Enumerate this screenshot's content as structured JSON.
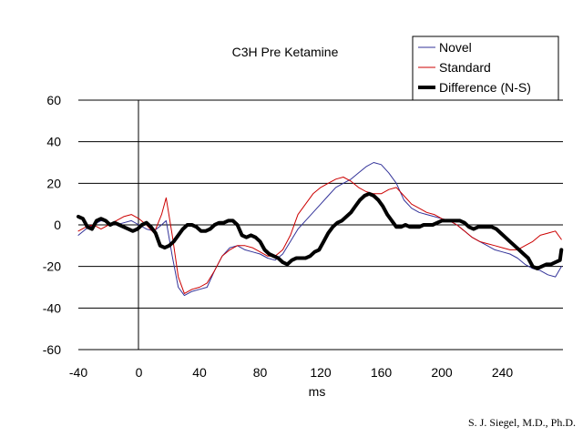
{
  "chart_data": {
    "type": "line",
    "title": "C3H Pre Ketamine",
    "xlabel": "ms",
    "ylabel": "",
    "xlim": [
      -40,
      280
    ],
    "ylim": [
      -60,
      60
    ],
    "x_ticks": [
      "-40",
      "0",
      "40",
      "80",
      "120",
      "160",
      "200",
      "240"
    ],
    "x_tick_values": [
      -40,
      0,
      40,
      80,
      120,
      160,
      200,
      240
    ],
    "y_ticks": [
      "60",
      "40",
      "20",
      "0",
      "-20",
      "-40",
      "-60"
    ],
    "y_tick_values": [
      60,
      40,
      20,
      0,
      -20,
      -40,
      -60
    ],
    "grid": "horizontal",
    "legend_position": "top-right",
    "series": [
      {
        "name": "Novel",
        "color": "#333399",
        "line_width": 1,
        "x": [
          -40,
          -35,
          -30,
          -25,
          -20,
          -15,
          -10,
          -5,
          0,
          5,
          10,
          15,
          18,
          22,
          26,
          30,
          35,
          40,
          45,
          50,
          55,
          60,
          65,
          70,
          75,
          80,
          85,
          90,
          95,
          100,
          105,
          110,
          115,
          120,
          125,
          130,
          135,
          140,
          145,
          150,
          155,
          160,
          165,
          170,
          175,
          180,
          185,
          190,
          195,
          200,
          205,
          210,
          215,
          220,
          225,
          230,
          235,
          240,
          245,
          250,
          255,
          260,
          265,
          270,
          275,
          279
        ],
        "values": [
          -5,
          -2,
          0,
          2,
          1,
          0,
          1,
          2,
          0,
          -2,
          -3,
          0,
          2,
          -15,
          -30,
          -34,
          -32,
          -31,
          -30,
          -22,
          -15,
          -11,
          -10,
          -12,
          -13,
          -14,
          -16,
          -17,
          -14,
          -8,
          -2,
          2,
          6,
          10,
          14,
          18,
          20,
          22,
          25,
          28,
          30,
          29,
          25,
          20,
          12,
          8,
          6,
          5,
          4,
          3,
          2,
          0,
          -3,
          -6,
          -8,
          -10,
          -12,
          -13,
          -14,
          -16,
          -19,
          -21,
          -22,
          -24,
          -25,
          -20
        ]
      },
      {
        "name": "Standard",
        "color": "#cc0000",
        "line_width": 1,
        "x": [
          -40,
          -35,
          -30,
          -25,
          -20,
          -15,
          -10,
          -5,
          0,
          5,
          10,
          15,
          18,
          22,
          26,
          30,
          35,
          40,
          45,
          50,
          55,
          60,
          65,
          70,
          75,
          80,
          85,
          90,
          95,
          100,
          105,
          110,
          115,
          120,
          125,
          130,
          135,
          140,
          145,
          150,
          155,
          160,
          165,
          170,
          175,
          180,
          185,
          190,
          195,
          200,
          205,
          210,
          215,
          220,
          225,
          230,
          235,
          240,
          245,
          250,
          255,
          260,
          265,
          270,
          275,
          279
        ],
        "values": [
          -3,
          -1,
          0,
          -2,
          0,
          2,
          4,
          5,
          3,
          0,
          -4,
          5,
          13,
          -5,
          -25,
          -33,
          -31,
          -30,
          -28,
          -22,
          -15,
          -12,
          -10,
          -10,
          -11,
          -13,
          -15,
          -15,
          -12,
          -5,
          5,
          10,
          15,
          18,
          20,
          22,
          23,
          21,
          18,
          16,
          15,
          15,
          17,
          18,
          14,
          10,
          8,
          6,
          5,
          3,
          2,
          0,
          -3,
          -6,
          -8,
          -9,
          -10,
          -11,
          -12,
          -12,
          -10,
          -8,
          -5,
          -4,
          -3,
          -7
        ]
      },
      {
        "name": "Difference (N-S)",
        "color": "#000000",
        "line_width": 4,
        "x": [
          -40,
          -37,
          -34,
          -31,
          -28,
          -25,
          -22,
          -19,
          -16,
          -13,
          -10,
          -7,
          -4,
          -1,
          2,
          5,
          8,
          11,
          14,
          17,
          20,
          23,
          26,
          29,
          32,
          35,
          38,
          41,
          44,
          47,
          50,
          53,
          56,
          59,
          62,
          65,
          68,
          71,
          74,
          77,
          80,
          83,
          86,
          89,
          92,
          95,
          98,
          101,
          104,
          107,
          110,
          113,
          116,
          119,
          122,
          125,
          128,
          131,
          134,
          137,
          140,
          143,
          146,
          149,
          152,
          155,
          158,
          161,
          164,
          167,
          170,
          173,
          176,
          179,
          182,
          185,
          188,
          191,
          194,
          197,
          200,
          203,
          206,
          209,
          212,
          215,
          218,
          221,
          224,
          227,
          230,
          233,
          236,
          239,
          242,
          245,
          248,
          251,
          254,
          257,
          260,
          263,
          266,
          269,
          272,
          275,
          278,
          279
        ],
        "values": [
          4,
          3,
          -1,
          -2,
          2,
          3,
          2,
          0,
          1,
          0,
          -1,
          -2,
          -3,
          -2,
          0,
          1,
          -1,
          -4,
          -10,
          -11,
          -10,
          -8,
          -5,
          -2,
          0,
          0,
          -1,
          -3,
          -3,
          -2,
          0,
          1,
          1,
          2,
          2,
          0,
          -5,
          -6,
          -5,
          -6,
          -8,
          -12,
          -14,
          -15,
          -16,
          -18,
          -19,
          -17,
          -16,
          -16,
          -16,
          -15,
          -13,
          -12,
          -8,
          -4,
          -1,
          1,
          2,
          4,
          6,
          9,
          12,
          14,
          15,
          14,
          12,
          9,
          5,
          2,
          -1,
          -1,
          0,
          -1,
          -1,
          -1,
          0,
          0,
          0,
          1,
          2,
          2,
          2,
          2,
          2,
          1,
          -1,
          -2,
          -1,
          -1,
          -1,
          -1,
          -2,
          -4,
          -6,
          -8,
          -10,
          -12,
          -14,
          -16,
          -20,
          -21,
          -20,
          -19,
          -19,
          -18,
          -17,
          -12
        ]
      }
    ]
  },
  "credit": "S. J. Siegel, M.D., Ph.D."
}
